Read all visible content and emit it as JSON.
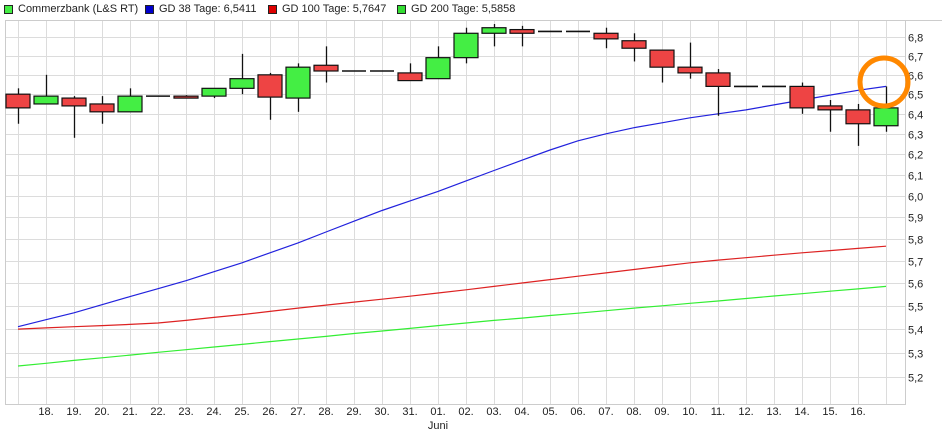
{
  "legend": {
    "items": [
      {
        "label": "Commerzbank (L&S RT)",
        "color": "#44ee44"
      },
      {
        "label": "GD 38 Tage: 6,5411",
        "color": "#0000cc"
      },
      {
        "label": "GD 100 Tage: 5,7647",
        "color": "#dd0000"
      },
      {
        "label": "GD 200 Tage: 5,5858",
        "color": "#33dd33"
      }
    ]
  },
  "chart_data": {
    "type": "candlestick",
    "y_scale": "log",
    "ylim": [
      5.1,
      6.9
    ],
    "y_ticks": [
      "5,2",
      "5,3",
      "5,4",
      "5,5",
      "5,6",
      "5,7",
      "5,8",
      "5,9",
      "6,0",
      "6,1",
      "6,2",
      "6,3",
      "6,4",
      "6,5",
      "6,6",
      "6,7",
      "6,8"
    ],
    "y_tick_values": [
      5.2,
      5.3,
      5.4,
      5.5,
      5.6,
      5.7,
      5.8,
      5.9,
      6.0,
      6.1,
      6.2,
      6.3,
      6.4,
      6.5,
      6.6,
      6.7,
      6.8
    ],
    "grid": true,
    "legend_position": "top",
    "x_labels": [
      "",
      "18.",
      "19.",
      "20.",
      "21.",
      "22.",
      "23.",
      "24.",
      "25.",
      "26.",
      "27.",
      "28.",
      "29.",
      "30.",
      "31.",
      "01.",
      "02.",
      "03.",
      "04.",
      "05.",
      "06.",
      "07.",
      "08.",
      "09.",
      "10.",
      "11.",
      "12.",
      "13.",
      "14.",
      "15.",
      "16.",
      ""
    ],
    "x_sublabel": {
      "index": 15,
      "text": "Juni"
    },
    "colors": {
      "up": "#44ee44",
      "down": "#ee4444",
      "flat": "#111111"
    },
    "candles": [
      {
        "o": 6.5,
        "h": 6.53,
        "l": 6.35,
        "c": 6.43
      },
      {
        "o": 6.45,
        "h": 6.6,
        "l": 6.45,
        "c": 6.49
      },
      {
        "o": 6.48,
        "h": 6.49,
        "l": 6.28,
        "c": 6.44
      },
      {
        "o": 6.45,
        "h": 6.49,
        "l": 6.35,
        "c": 6.41
      },
      {
        "o": 6.41,
        "h": 6.53,
        "l": 6.41,
        "c": 6.49
      },
      {
        "o": 6.49,
        "h": 6.49,
        "l": 6.49,
        "c": 6.49
      },
      {
        "o": 6.49,
        "h": 6.495,
        "l": 6.48,
        "c": 6.48
      },
      {
        "o": 6.49,
        "h": 6.53,
        "l": 6.48,
        "c": 6.53
      },
      {
        "o": 6.53,
        "h": 6.71,
        "l": 6.5,
        "c": 6.58
      },
      {
        "o": 6.6,
        "h": 6.61,
        "l": 6.37,
        "c": 6.485
      },
      {
        "o": 6.48,
        "h": 6.66,
        "l": 6.41,
        "c": 6.64
      },
      {
        "o": 6.65,
        "h": 6.75,
        "l": 6.56,
        "c": 6.62
      },
      {
        "o": 6.62,
        "h": 6.62,
        "l": 6.62,
        "c": 6.62
      },
      {
        "o": 6.62,
        "h": 6.62,
        "l": 6.62,
        "c": 6.62
      },
      {
        "o": 6.61,
        "h": 6.66,
        "l": 6.57,
        "c": 6.57
      },
      {
        "o": 6.58,
        "h": 6.75,
        "l": 6.58,
        "c": 6.69
      },
      {
        "o": 6.69,
        "h": 6.85,
        "l": 6.66,
        "c": 6.82
      },
      {
        "o": 6.82,
        "h": 6.87,
        "l": 6.75,
        "c": 6.85
      },
      {
        "o": 6.84,
        "h": 6.86,
        "l": 6.75,
        "c": 6.82
      },
      {
        "o": 6.83,
        "h": 6.83,
        "l": 6.83,
        "c": 6.83
      },
      {
        "o": 6.83,
        "h": 6.83,
        "l": 6.83,
        "c": 6.83
      },
      {
        "o": 6.82,
        "h": 6.85,
        "l": 6.74,
        "c": 6.79
      },
      {
        "o": 6.78,
        "h": 6.82,
        "l": 6.67,
        "c": 6.74
      },
      {
        "o": 6.73,
        "h": 6.73,
        "l": 6.56,
        "c": 6.64
      },
      {
        "o": 6.64,
        "h": 6.77,
        "l": 6.58,
        "c": 6.61
      },
      {
        "o": 6.61,
        "h": 6.63,
        "l": 6.39,
        "c": 6.54
      },
      {
        "o": 6.54,
        "h": 6.54,
        "l": 6.54,
        "c": 6.54
      },
      {
        "o": 6.54,
        "h": 6.54,
        "l": 6.54,
        "c": 6.54
      },
      {
        "o": 6.54,
        "h": 6.56,
        "l": 6.4,
        "c": 6.43
      },
      {
        "o": 6.44,
        "h": 6.47,
        "l": 6.31,
        "c": 6.42
      },
      {
        "o": 6.42,
        "h": 6.45,
        "l": 6.24,
        "c": 6.35
      },
      {
        "o": 6.34,
        "h": 6.54,
        "l": 6.31,
        "c": 6.43
      }
    ],
    "series": [
      {
        "name": "GD 38 Tage",
        "color": "#2222dd",
        "values": [
          5.41,
          5.44,
          5.47,
          5.505,
          5.54,
          5.575,
          5.61,
          5.65,
          5.69,
          5.735,
          5.78,
          5.83,
          5.88,
          5.93,
          5.975,
          6.02,
          6.07,
          6.12,
          6.17,
          6.22,
          6.265,
          6.3,
          6.33,
          6.355,
          6.38,
          6.4,
          6.42,
          6.445,
          6.47,
          6.495,
          6.52,
          6.54
        ]
      },
      {
        "name": "GD 100 Tage",
        "color": "#dd2222",
        "values": [
          5.4,
          5.405,
          5.41,
          5.415,
          5.42,
          5.426,
          5.437,
          5.45,
          5.462,
          5.476,
          5.49,
          5.503,
          5.516,
          5.529,
          5.542,
          5.556,
          5.57,
          5.585,
          5.6,
          5.615,
          5.63,
          5.645,
          5.66,
          5.675,
          5.69,
          5.702,
          5.713,
          5.724,
          5.735,
          5.745,
          5.755,
          5.765
        ]
      },
      {
        "name": "GD 200 Tage",
        "color": "#33ee33",
        "values": [
          5.245,
          5.256,
          5.268,
          5.279,
          5.29,
          5.302,
          5.313,
          5.324,
          5.335,
          5.347,
          5.358,
          5.369,
          5.381,
          5.392,
          5.403,
          5.415,
          5.426,
          5.437,
          5.447,
          5.458,
          5.468,
          5.479,
          5.49,
          5.5,
          5.511,
          5.521,
          5.532,
          5.543,
          5.553,
          5.564,
          5.574,
          5.585
        ]
      }
    ],
    "annotation": {
      "shape": "circle",
      "color": "#ff8800"
    }
  }
}
